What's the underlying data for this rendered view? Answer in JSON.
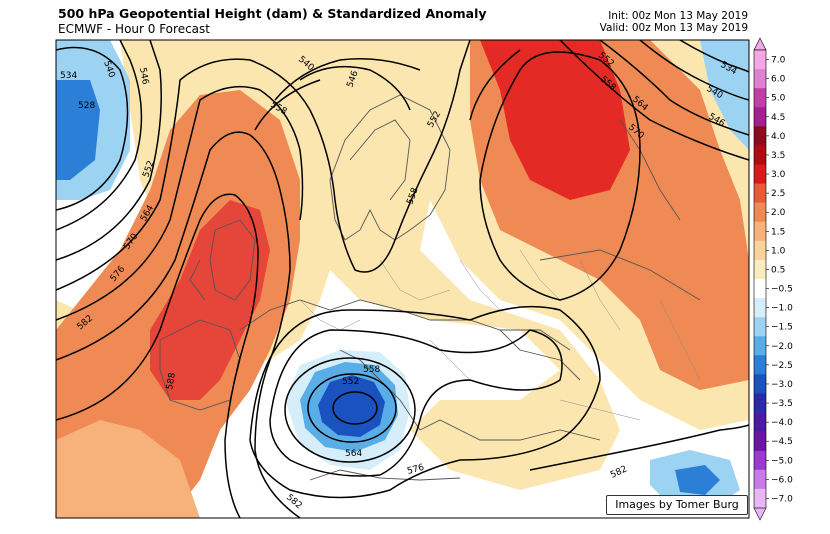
{
  "header": {
    "title": "500 hPa Geopotential Height (dam) & Standardized Anomaly",
    "subtitle": "ECMWF - Hour 0 Forecast",
    "init": "Init: 00z Mon 13 May 2019",
    "valid": "Valid: 00z Mon 13 May 2019"
  },
  "credit": "Images by Tomer Burg",
  "contour_labels": [
    "534",
    "528",
    "540",
    "546",
    "552",
    "558",
    "564",
    "570",
    "576",
    "582",
    "588",
    "540",
    "546",
    "552",
    "558",
    "534",
    "540",
    "546",
    "552",
    "558",
    "564",
    "570",
    "558",
    "552",
    "564",
    "576",
    "582",
    "582"
  ],
  "colorbar": {
    "ticks": [
      "7.0",
      "6.0",
      "5.0",
      "4.5",
      "4.0",
      "3.5",
      "3.0",
      "2.5",
      "2.0",
      "1.5",
      "1.0",
      "0.5",
      "−0.5",
      "−1.0",
      "−1.5",
      "−2.0",
      "−2.5",
      "−3.0",
      "−3.5",
      "−4.0",
      "−4.5",
      "−5.0",
      "−6.0",
      "−7.0"
    ],
    "colors": [
      "#f4a6e6",
      "#e080d0",
      "#c23ea6",
      "#a3208e",
      "#8c0b1e",
      "#b00a12",
      "#d81a1a",
      "#e85a3a",
      "#f08a55",
      "#f6b27a",
      "#f8d49c",
      "#fbecc0",
      "#ffffff",
      "#d6eefa",
      "#9cd3f2",
      "#5aaee8",
      "#2b7fd6",
      "#1a52c0",
      "#2a2aa8",
      "#4b1aa0",
      "#6a14a6",
      "#9a3ad0",
      "#c77ae8",
      "#e8b6f4"
    ]
  },
  "colors": {
    "ocean_border": "#000000",
    "pos_strong": "#d81a1a",
    "pos_mid": "#f08a55",
    "pos_weak": "#fbe6b0",
    "neg_mid": "#5aaee8",
    "neg_strong": "#1a52c0"
  }
}
